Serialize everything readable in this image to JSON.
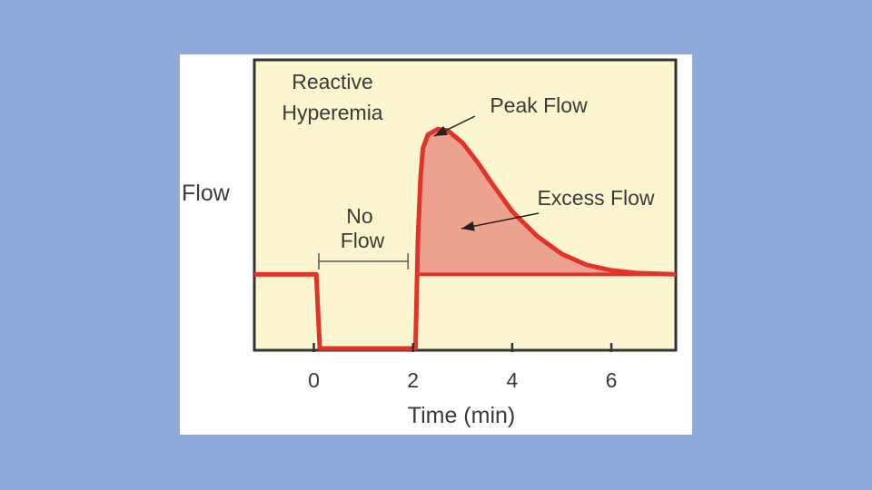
{
  "colors": {
    "slide_background": "#8eaadb",
    "card_background": "#ffffff",
    "plot_background": "#fbf6cf",
    "curve": "#e0342a",
    "excess_fill": "#eda28f",
    "axis": "#333333"
  },
  "chart_data": {
    "type": "line",
    "title": "",
    "ylabel": "Flow",
    "xlabel": "Time (min)",
    "xlim": [
      -1.2,
      7.3
    ],
    "ylim": [
      0,
      1
    ],
    "x_ticks": [
      "0",
      "2",
      "4",
      "6"
    ],
    "x_tick_values": [
      0,
      2,
      4,
      6
    ],
    "y_ticks": [],
    "grid": false,
    "baseline": 0.27,
    "series": [
      {
        "values": [
          [
            -1.2,
            0.27
          ],
          [
            0.05,
            0.27
          ],
          [
            0.12,
            0.0
          ],
          [
            1.95,
            0.0
          ],
          [
            2.05,
            0.0
          ],
          [
            2.1,
            0.4
          ],
          [
            2.15,
            0.62
          ],
          [
            2.2,
            0.73
          ],
          [
            2.3,
            0.78
          ],
          [
            2.5,
            0.8
          ],
          [
            2.7,
            0.795
          ],
          [
            3.0,
            0.75
          ],
          [
            3.3,
            0.68
          ],
          [
            3.6,
            0.6
          ],
          [
            4.0,
            0.5
          ],
          [
            4.5,
            0.41
          ],
          [
            5.0,
            0.345
          ],
          [
            5.5,
            0.305
          ],
          [
            6.0,
            0.285
          ],
          [
            6.5,
            0.275
          ],
          [
            7.3,
            0.27
          ]
        ]
      }
    ],
    "annotations": {
      "title_line1": "Reactive",
      "title_line2": "Hyperemia",
      "peak": "Peak Flow",
      "excess": "Excess Flow",
      "noflow_line1": "No",
      "noflow_line2": "Flow"
    },
    "regions": {
      "no_flow_interval": [
        0.1,
        1.9
      ],
      "excess_flow_start": 2.1
    }
  }
}
